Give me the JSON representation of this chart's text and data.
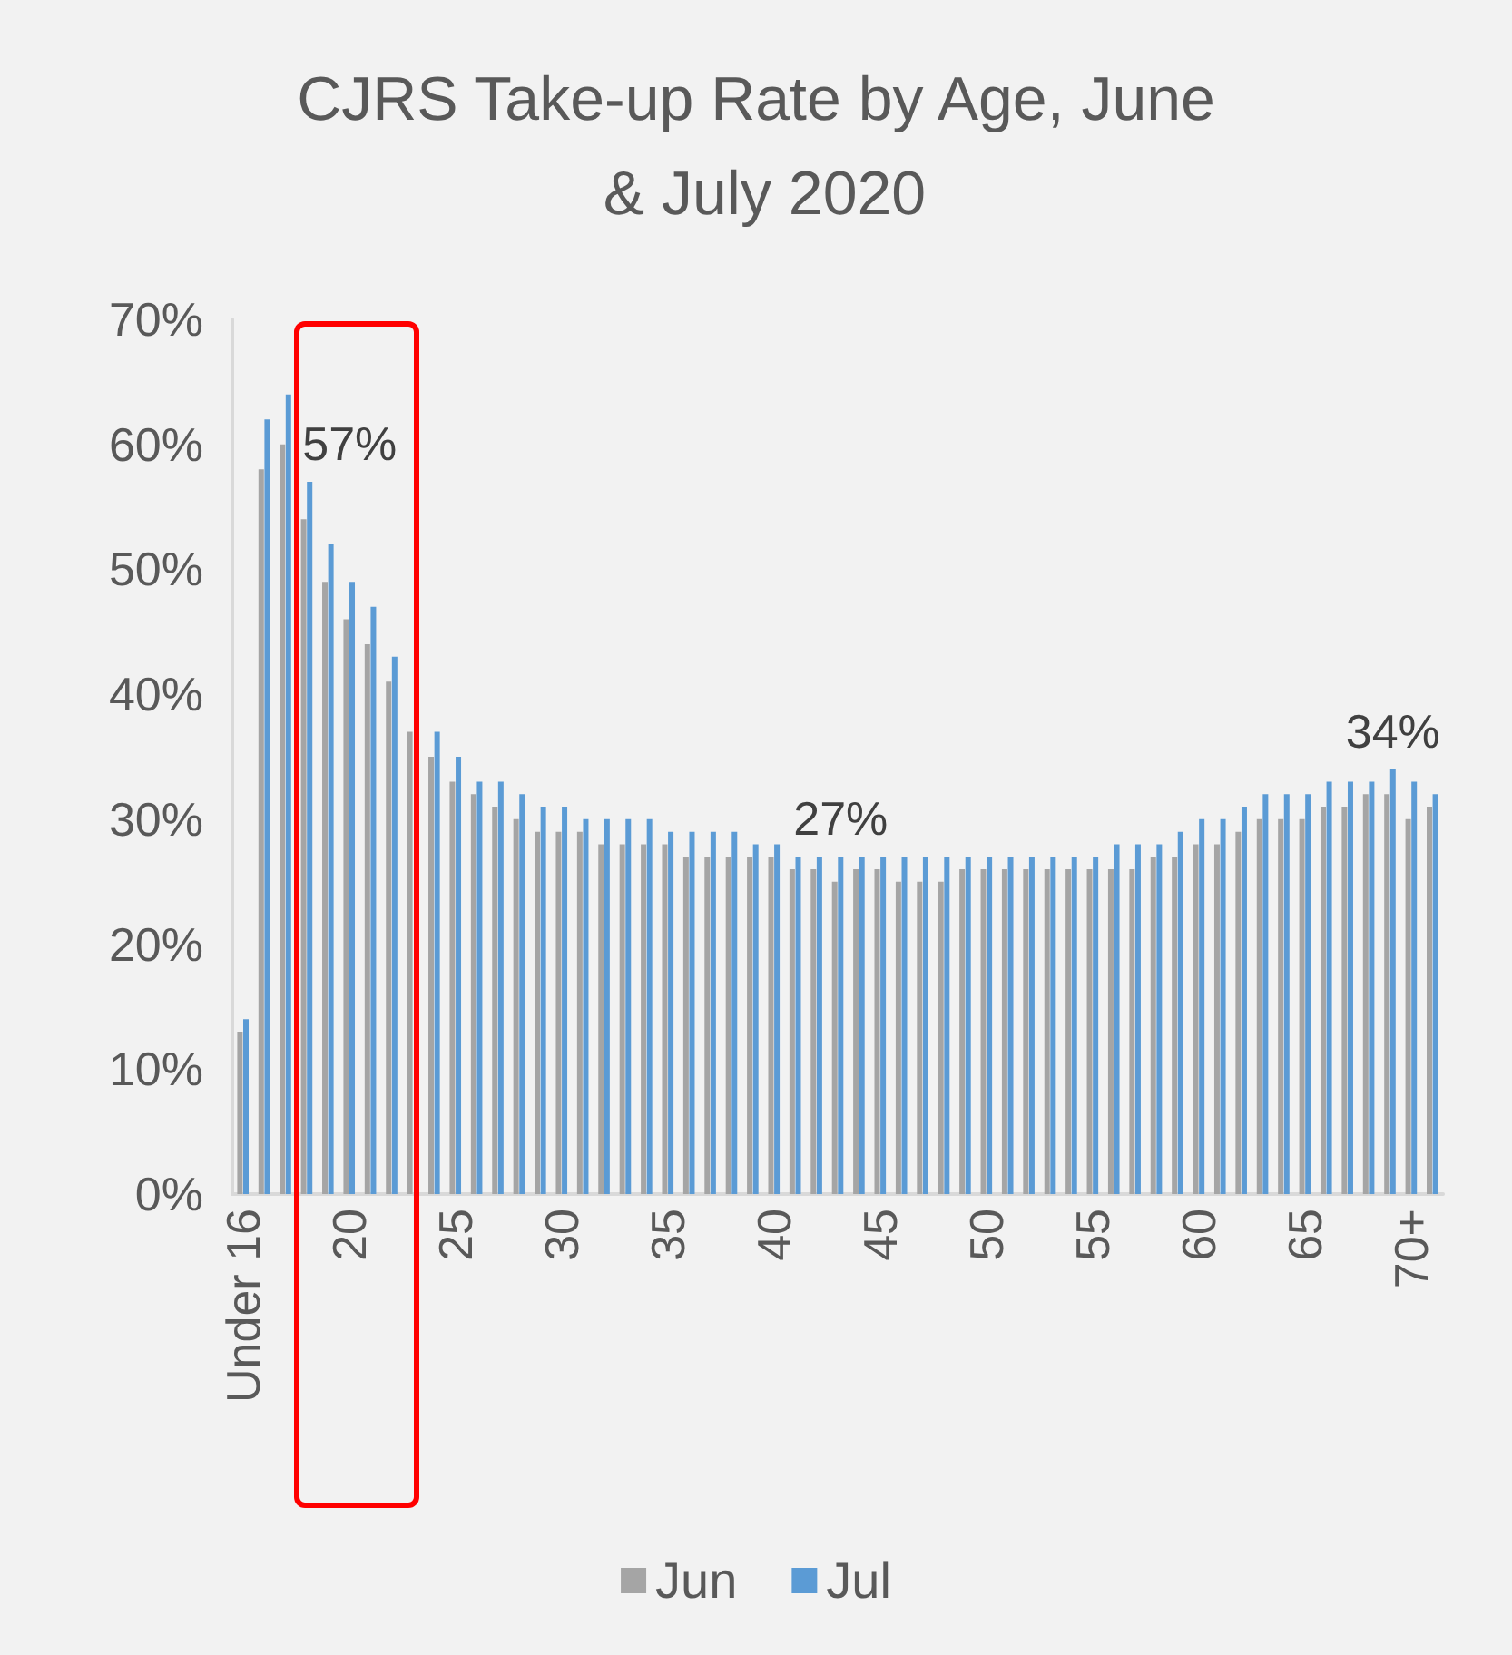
{
  "chart_data": {
    "type": "bar",
    "title": "CJRS Take-up Rate by Age, June & July 2020",
    "categories": [
      "Under 16",
      null,
      null,
      null,
      null,
      "20",
      null,
      null,
      null,
      null,
      "25",
      null,
      null,
      null,
      null,
      "30",
      null,
      null,
      null,
      null,
      "35",
      null,
      null,
      null,
      null,
      "40",
      null,
      null,
      null,
      null,
      "45",
      null,
      null,
      null,
      null,
      "50",
      null,
      null,
      null,
      null,
      "55",
      null,
      null,
      null,
      null,
      "60",
      null,
      null,
      null,
      null,
      "65",
      null,
      null,
      null,
      null,
      "70+",
      null
    ],
    "series": [
      {
        "name": "Jun",
        "color": "#a5a5a5",
        "values": [
          13,
          58,
          60,
          54,
          49,
          46,
          44,
          41,
          37,
          35,
          33,
          32,
          31,
          30,
          29,
          29,
          29,
          28,
          28,
          28,
          28,
          27,
          27,
          27,
          27,
          27,
          26,
          26,
          25,
          26,
          26,
          25,
          25,
          25,
          26,
          26,
          26,
          26,
          26,
          26,
          26,
          26,
          26,
          27,
          27,
          28,
          28,
          29,
          30,
          30,
          30,
          31,
          31,
          32,
          32,
          30,
          31
        ]
      },
      {
        "name": "Jul",
        "color": "#5b9bd5",
        "values": [
          14,
          62,
          64,
          57,
          52,
          49,
          47,
          43,
          null,
          37,
          35,
          33,
          33,
          32,
          31,
          31,
          30,
          30,
          30,
          30,
          29,
          29,
          29,
          29,
          28,
          28,
          27,
          27,
          27,
          27,
          27,
          27,
          27,
          27,
          27,
          27,
          27,
          27,
          27,
          27,
          27,
          28,
          28,
          28,
          29,
          30,
          30,
          31,
          32,
          32,
          32,
          33,
          33,
          33,
          34,
          33,
          32
        ],
        "value_labels": [
          null,
          null,
          null,
          "57%",
          null,
          null,
          null,
          null,
          null,
          null,
          null,
          null,
          null,
          null,
          null,
          null,
          null,
          null,
          null,
          null,
          null,
          null,
          null,
          null,
          null,
          null,
          null,
          null,
          "27%",
          null,
          null,
          null,
          null,
          null,
          null,
          null,
          null,
          null,
          null,
          null,
          null,
          null,
          null,
          null,
          null,
          null,
          null,
          null,
          null,
          null,
          null,
          null,
          null,
          null,
          "34%",
          null,
          null
        ]
      }
    ],
    "ylim": [
      0,
      70
    ],
    "yticks": [
      {
        "value": 0,
        "label": "0%"
      },
      {
        "value": 10,
        "label": "10%"
      },
      {
        "value": 20,
        "label": "20%"
      },
      {
        "value": 30,
        "label": "30%"
      },
      {
        "value": 40,
        "label": "40%"
      },
      {
        "value": 50,
        "label": "50%"
      },
      {
        "value": 60,
        "label": "60%"
      },
      {
        "value": 70,
        "label": "70%"
      }
    ],
    "grid": false,
    "legend": "bottom"
  }
}
